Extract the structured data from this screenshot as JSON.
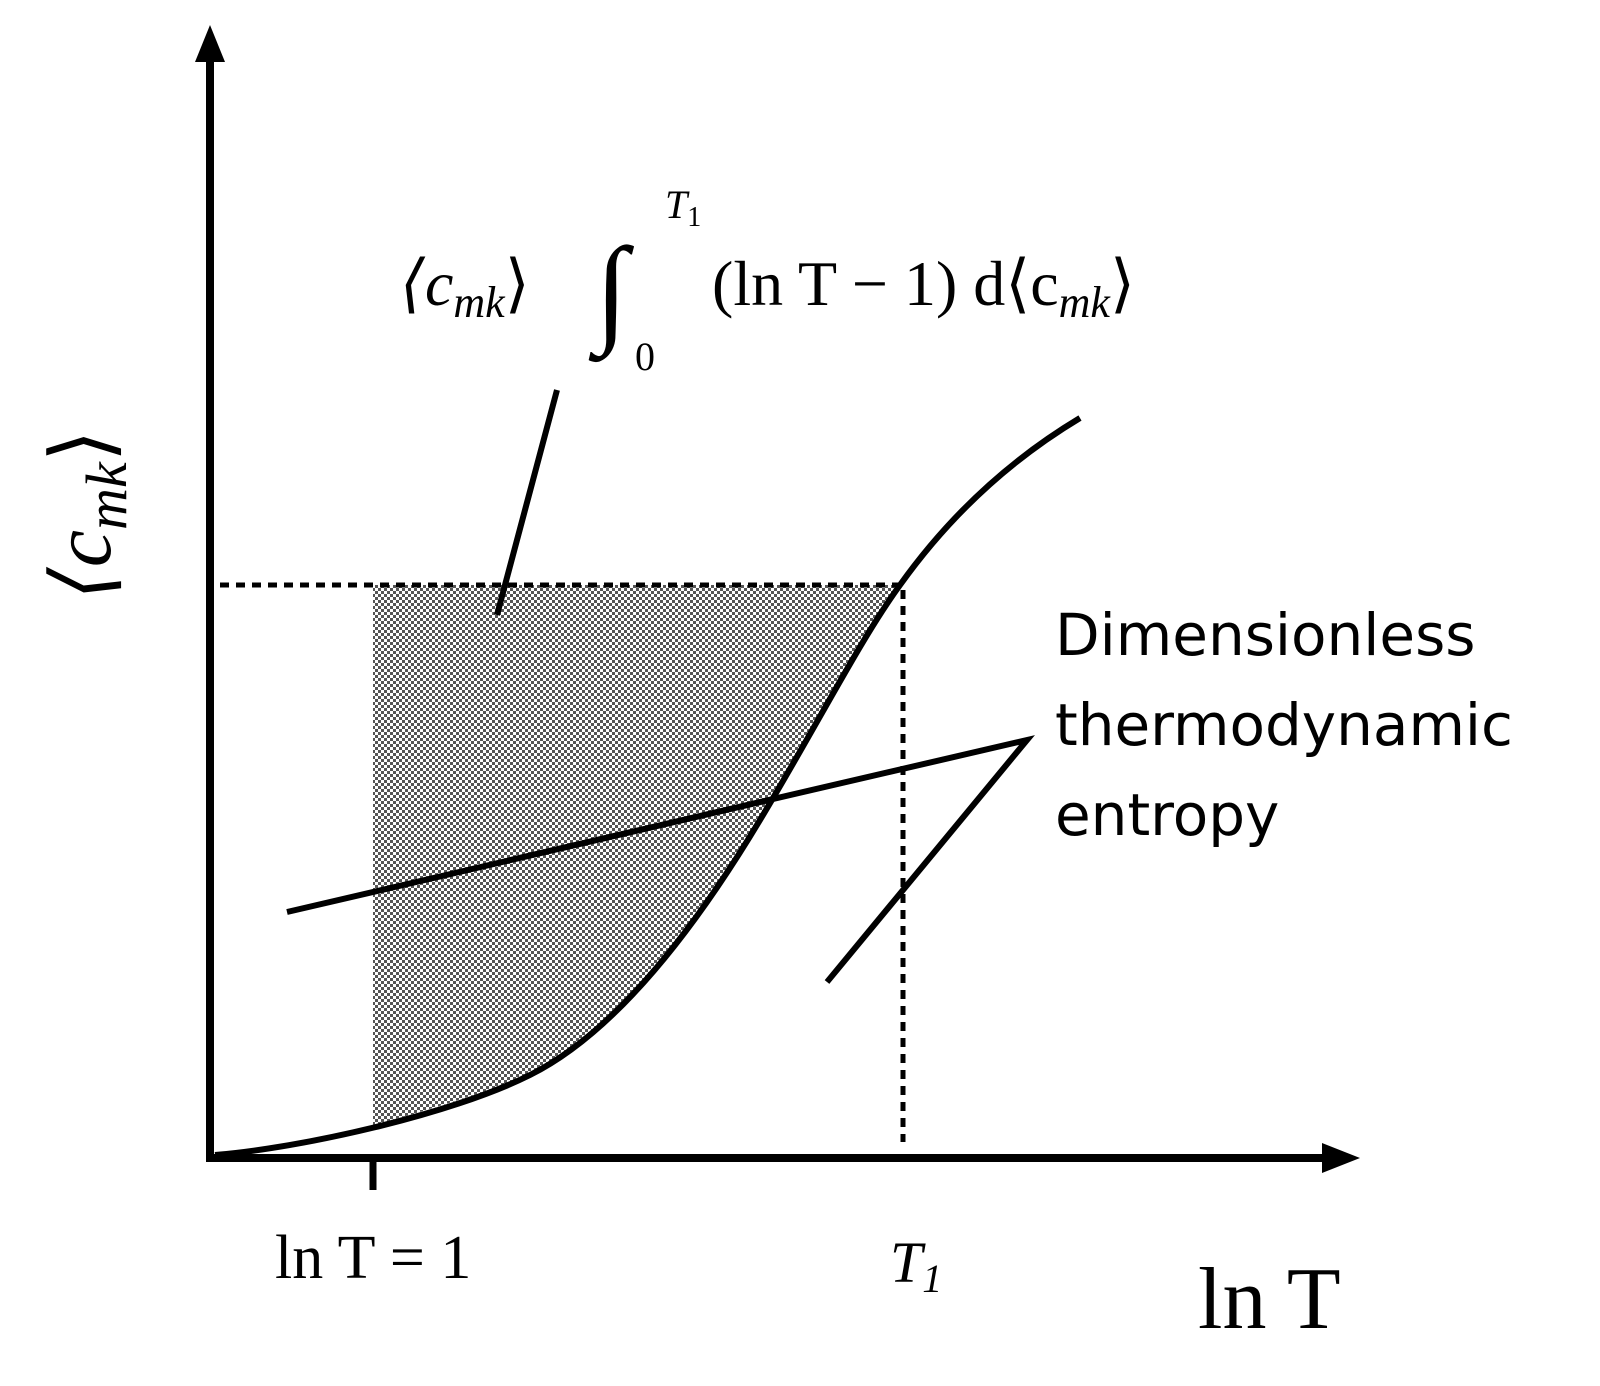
{
  "y_axis_label": {
    "text": "⟨c",
    "sub": "mk",
    "end": "⟩"
  },
  "x_axis_label": "ln T",
  "marker_ln_t_1": "ln T = 1",
  "marker_t1": {
    "text": "T",
    "sub": "1"
  },
  "formula": {
    "prefix": "⟨c",
    "prefix_sub": "mk",
    "prefix_end": "⟩",
    "integral": "∫",
    "lower": "0",
    "upper": "T",
    "upper_sub": "1",
    "integrand": "(ln T − 1) d⟨c",
    "integrand_sub": "mk",
    "integrand_end": "⟩"
  },
  "entropy_label": [
    "Dimensionless",
    "thermodynamic",
    "entropy"
  ]
}
